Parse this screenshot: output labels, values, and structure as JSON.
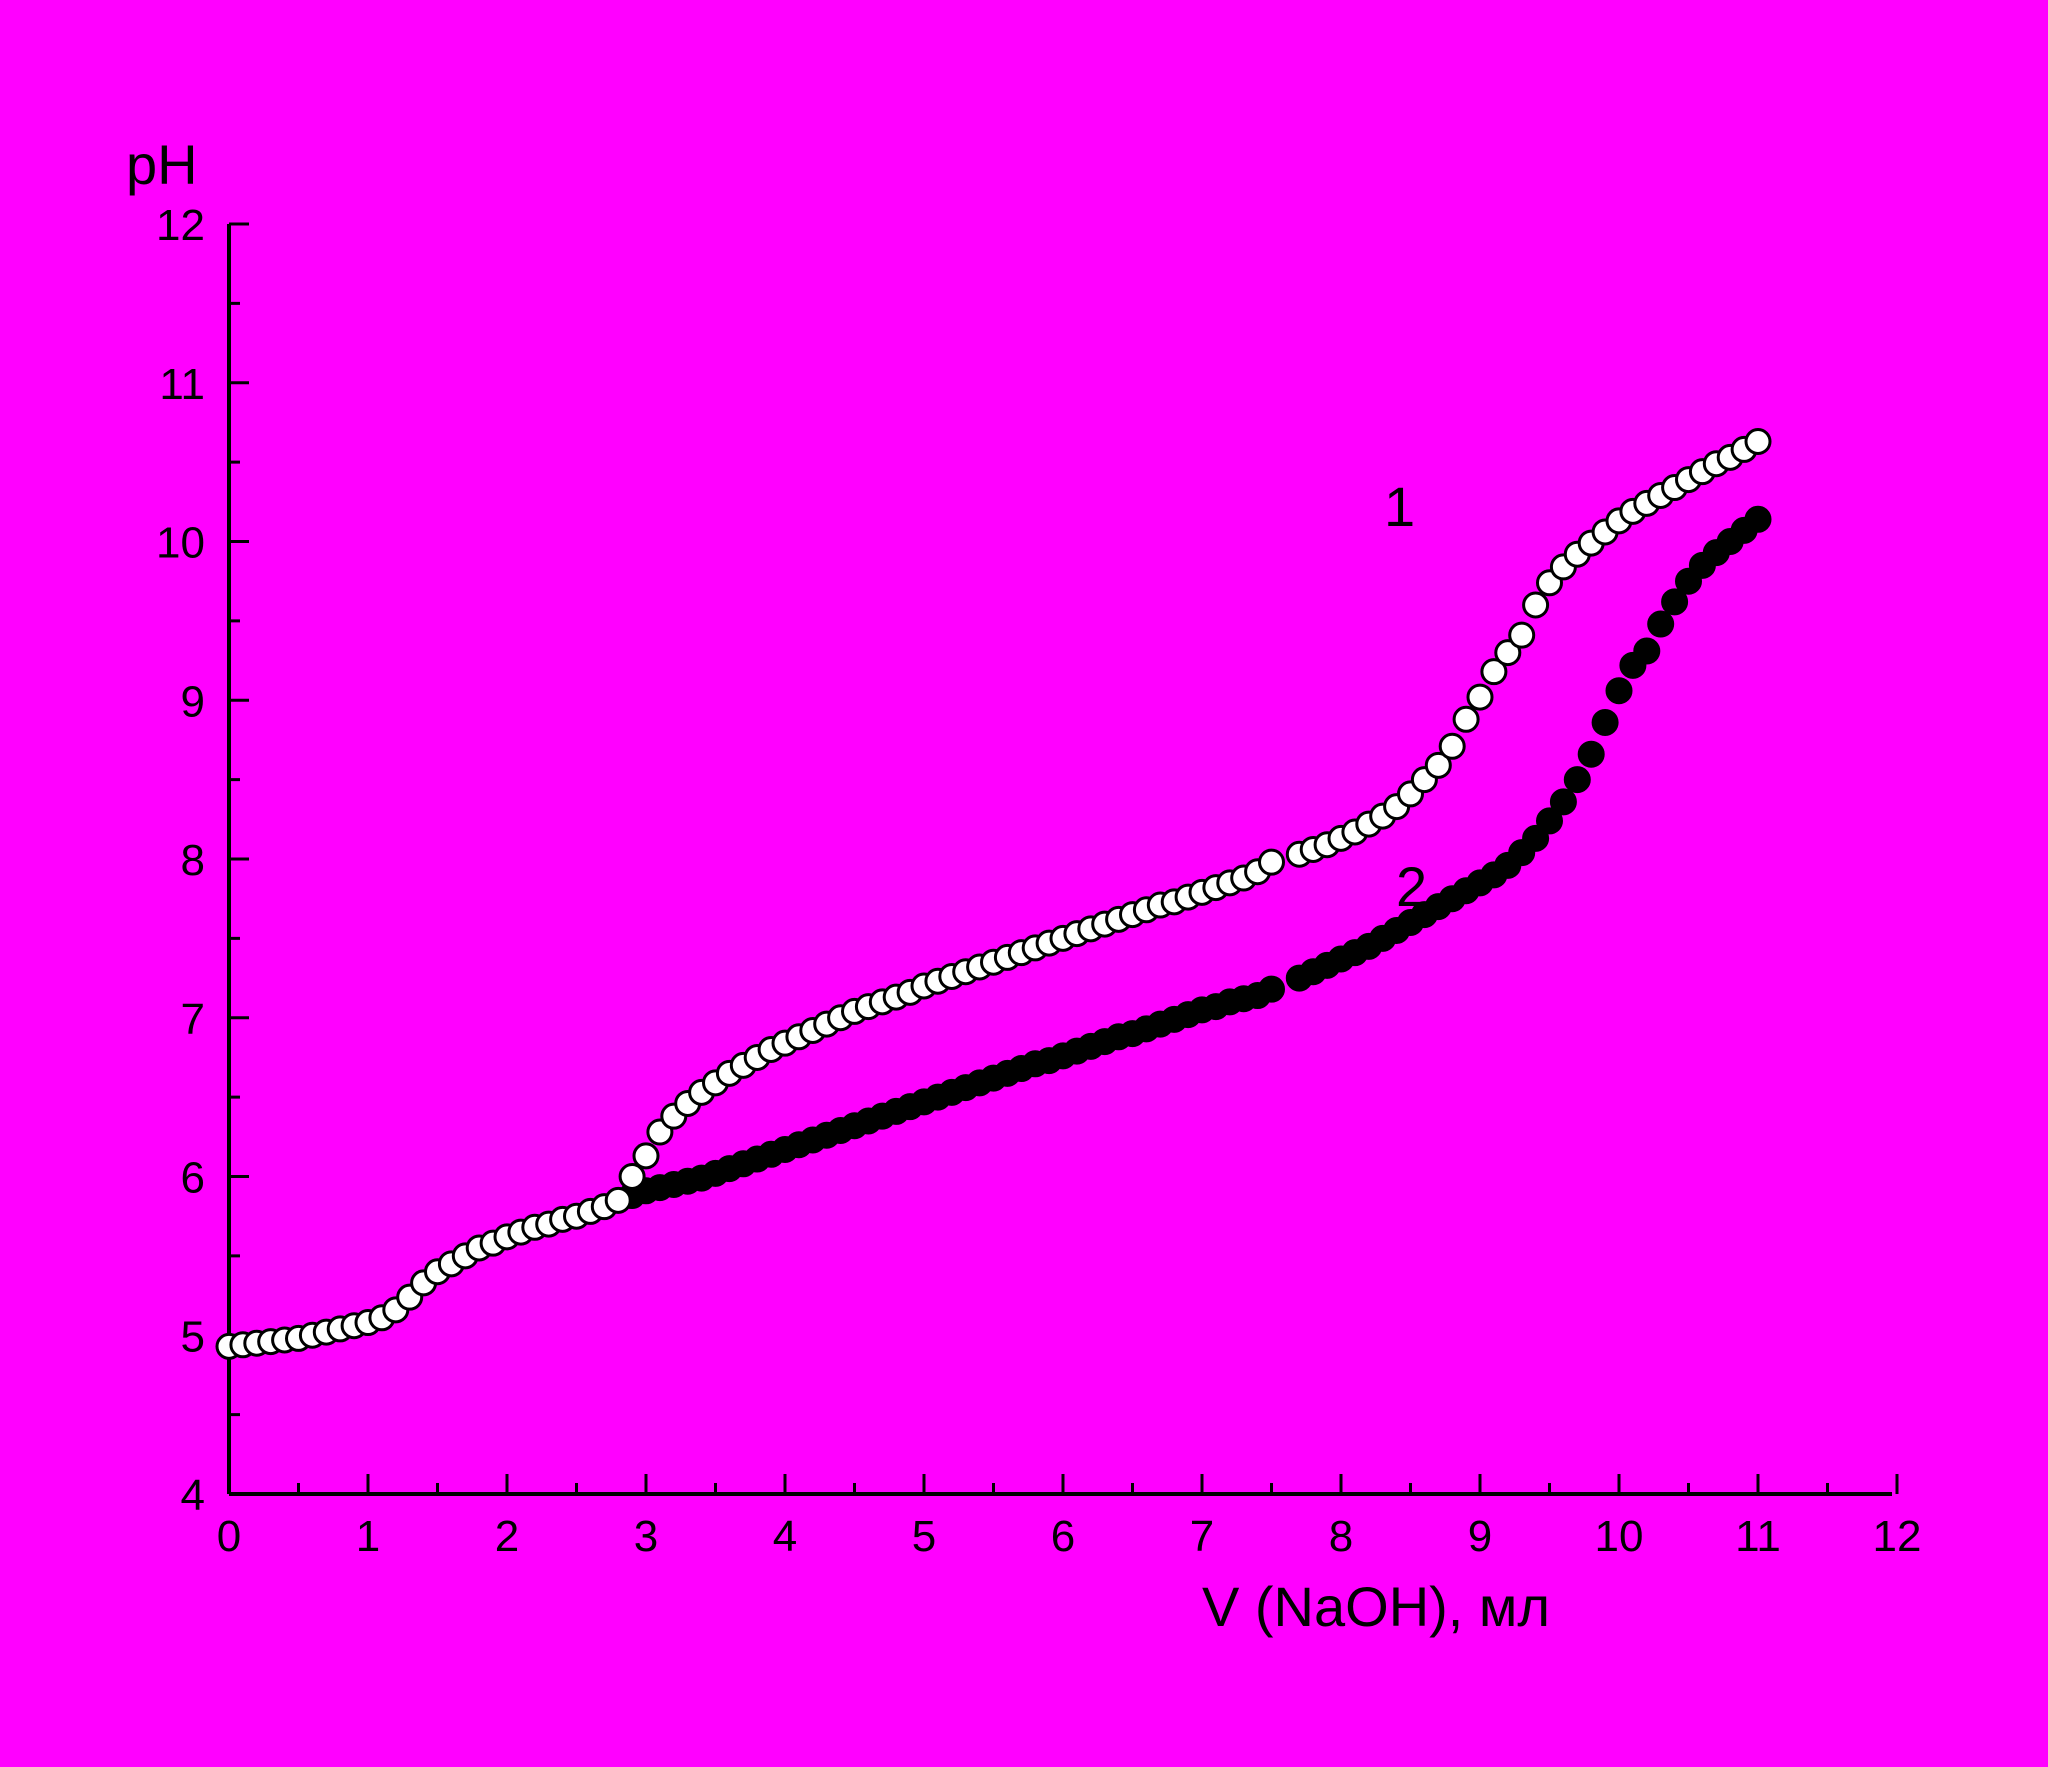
{
  "chart_data": {
    "type": "scatter",
    "title": "",
    "xlabel": "V (NaOH), мл",
    "ylabel": "pH",
    "xlim": [
      0,
      12
    ],
    "ylim": [
      4,
      12
    ],
    "x_ticks": [
      "0",
      "1",
      "2",
      "3",
      "4",
      "5",
      "6",
      "7",
      "8",
      "9",
      "10",
      "11",
      "12"
    ],
    "y_ticks": [
      "4",
      "5",
      "6",
      "7",
      "8",
      "9",
      "10",
      "11",
      "12"
    ],
    "grid": false,
    "legend": "none",
    "background_color": "#ff00ff",
    "curve_labels": [
      {
        "text": "1",
        "series": "1",
        "x": 9.0,
        "y": 10.2
      },
      {
        "text": "2",
        "series": "2",
        "x": 9.0,
        "y": 7.8
      }
    ],
    "series": [
      {
        "name": "1",
        "marker": "open-circle",
        "marker_fill": "#ffffff",
        "marker_edge": "#000000",
        "x": [
          0.0,
          0.1,
          0.2,
          0.3,
          0.4,
          0.5,
          0.6,
          0.7,
          0.8,
          0.9,
          1.0,
          1.1,
          1.2,
          1.3,
          1.4,
          1.5,
          1.6,
          1.7,
          1.8,
          1.9,
          2.0,
          2.1,
          2.2,
          2.3,
          2.4,
          2.5,
          2.6,
          2.7,
          2.8,
          2.9,
          3.0,
          3.1,
          3.2,
          3.3,
          3.4,
          3.5,
          3.6,
          3.7,
          3.8,
          3.9,
          4.0,
          4.1,
          4.2,
          4.3,
          4.4,
          4.5,
          4.6,
          4.7,
          4.8,
          4.9,
          5.0,
          5.1,
          5.2,
          5.3,
          5.4,
          5.5,
          5.6,
          5.7,
          5.8,
          5.9,
          6.0,
          6.1,
          6.2,
          6.3,
          6.4,
          6.5,
          6.6,
          6.7,
          6.8,
          6.9,
          7.0,
          7.1,
          7.2,
          7.3,
          7.4,
          7.5,
          7.7,
          7.8,
          7.9,
          8.0,
          8.1,
          8.2,
          8.3,
          8.4,
          8.5,
          8.6,
          8.7,
          8.8,
          8.9,
          9.0,
          9.1,
          9.2,
          9.3,
          9.4,
          9.5,
          9.6,
          9.7,
          9.8,
          9.9,
          10.0,
          10.1,
          10.2,
          10.3,
          10.4,
          10.5,
          10.6,
          10.7,
          10.8,
          10.9,
          11.0
        ],
        "y": [
          4.93,
          4.94,
          4.95,
          4.96,
          4.97,
          4.98,
          5.0,
          5.02,
          5.04,
          5.06,
          5.08,
          5.11,
          5.16,
          5.24,
          5.33,
          5.4,
          5.45,
          5.5,
          5.55,
          5.58,
          5.62,
          5.65,
          5.68,
          5.7,
          5.73,
          5.75,
          5.78,
          5.81,
          5.85,
          6.0,
          6.13,
          6.28,
          6.38,
          6.46,
          6.53,
          6.59,
          6.65,
          6.7,
          6.75,
          6.8,
          6.84,
          6.88,
          6.92,
          6.96,
          7.0,
          7.04,
          7.07,
          7.1,
          7.13,
          7.16,
          7.2,
          7.23,
          7.26,
          7.29,
          7.32,
          7.35,
          7.38,
          7.41,
          7.44,
          7.47,
          7.5,
          7.53,
          7.56,
          7.59,
          7.62,
          7.65,
          7.68,
          7.71,
          7.73,
          7.76,
          7.79,
          7.82,
          7.85,
          7.88,
          7.92,
          7.98,
          8.03,
          8.06,
          8.09,
          8.13,
          8.17,
          8.22,
          8.27,
          8.33,
          8.41,
          8.5,
          8.59,
          8.71,
          8.88,
          9.02,
          9.18,
          9.3,
          9.41,
          9.6,
          9.74,
          9.84,
          9.92,
          9.99,
          10.06,
          10.13,
          10.19,
          10.24,
          10.29,
          10.34,
          10.39,
          10.44,
          10.49,
          10.53,
          10.58,
          10.63
        ]
      },
      {
        "name": "2",
        "marker": "filled-circle",
        "marker_fill": "#000000",
        "marker_edge": "#000000",
        "x": [
          2.9,
          3.0,
          3.1,
          3.2,
          3.3,
          3.4,
          3.5,
          3.6,
          3.7,
          3.8,
          3.9,
          4.0,
          4.1,
          4.2,
          4.3,
          4.4,
          4.5,
          4.6,
          4.7,
          4.8,
          4.9,
          5.0,
          5.1,
          5.2,
          5.3,
          5.4,
          5.5,
          5.6,
          5.7,
          5.8,
          5.9,
          6.0,
          6.1,
          6.2,
          6.3,
          6.4,
          6.5,
          6.6,
          6.7,
          6.8,
          6.9,
          7.0,
          7.1,
          7.2,
          7.3,
          7.4,
          7.5,
          7.7,
          7.8,
          7.9,
          8.0,
          8.1,
          8.2,
          8.3,
          8.4,
          8.5,
          8.6,
          8.7,
          8.8,
          8.9,
          9.0,
          9.1,
          9.2,
          9.3,
          9.4,
          9.5,
          9.6,
          9.7,
          9.8,
          9.9,
          10.0,
          10.1,
          10.2,
          10.3,
          10.4,
          10.5,
          10.6,
          10.7,
          10.8,
          10.9,
          11.0
        ],
        "y": [
          5.88,
          5.91,
          5.93,
          5.95,
          5.97,
          5.99,
          6.02,
          6.05,
          6.08,
          6.11,
          6.14,
          6.17,
          6.2,
          6.23,
          6.26,
          6.29,
          6.32,
          6.35,
          6.38,
          6.41,
          6.44,
          6.47,
          6.5,
          6.53,
          6.56,
          6.59,
          6.62,
          6.65,
          6.68,
          6.71,
          6.73,
          6.76,
          6.79,
          6.82,
          6.85,
          6.88,
          6.9,
          6.93,
          6.96,
          6.99,
          7.02,
          7.05,
          7.07,
          7.1,
          7.12,
          7.14,
          7.18,
          7.25,
          7.29,
          7.33,
          7.37,
          7.41,
          7.45,
          7.5,
          7.55,
          7.6,
          7.65,
          7.7,
          7.75,
          7.8,
          7.85,
          7.9,
          7.96,
          8.04,
          8.13,
          8.24,
          8.36,
          8.5,
          8.66,
          8.86,
          9.06,
          9.22,
          9.31,
          9.48,
          9.62,
          9.75,
          9.85,
          9.93,
          10.0,
          10.07,
          10.14
        ]
      }
    ]
  }
}
